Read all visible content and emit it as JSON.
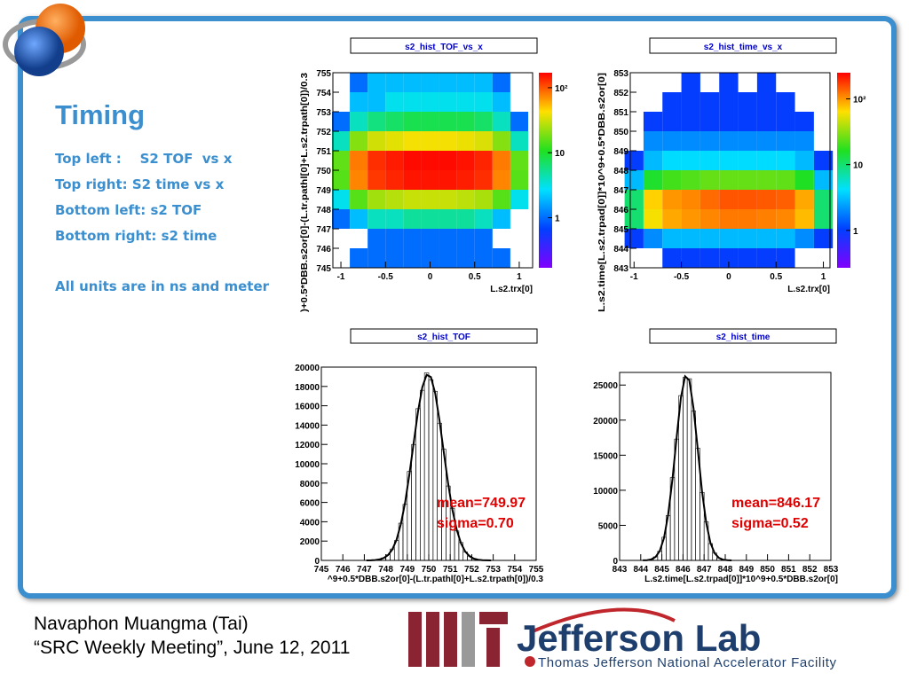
{
  "slide": {
    "title": "Timing",
    "bullets": [
      "Top left :    S2 TOF  vs x",
      "Top right: S2 time vs x",
      "Bottom left: s2 TOF",
      "Bottom right: s2 time",
      "All units are in ns and meter"
    ],
    "footer": [
      "Navaphon Muangma (Tai)",
      "“SRC Weekly Meeting”, June 12, 2011"
    ],
    "logo": {
      "name": "Jefferson Lab",
      "subtitle": "Thomas Jefferson National Accelerator Facility"
    }
  },
  "chart_data": [
    {
      "type": "heatmap",
      "title": "s2_hist_TOF_vs_x",
      "x_label": "L.s2.trx[0]",
      "y_label": ")+0.5*DBB.s2or[0]-(L.tr.pathl[0]+L.s2.trpath[0])/0.3",
      "xlim": [
        -1.09,
        1.15
      ],
      "ylim": [
        745,
        755
      ],
      "xticks": [
        -1,
        -0.5,
        0,
        0.5,
        1
      ],
      "yticks": [
        745,
        746,
        747,
        748,
        749,
        750,
        751,
        752,
        753,
        754,
        755
      ],
      "zlim": [
        0.17,
        170
      ],
      "zticks": [
        1,
        10,
        {
          "value": 100,
          "label": "10²"
        }
      ],
      "log_z": true,
      "xbins": [
        -1.1,
        -0.9,
        -0.7,
        -0.5,
        -0.3,
        -0.1,
        0.1,
        0.3,
        0.5,
        0.7,
        0.9,
        1.1
      ],
      "ybins": [
        745,
        746,
        747,
        748,
        749,
        750,
        751,
        752,
        753,
        754,
        755
      ],
      "z": [
        [
          0,
          1,
          1,
          1,
          1,
          1,
          1,
          1,
          1,
          1,
          0
        ],
        [
          0,
          0,
          1,
          1,
          1,
          1,
          1,
          1,
          1,
          0,
          0
        ],
        [
          1,
          2,
          4,
          4,
          5,
          5,
          5,
          5,
          4,
          2,
          0
        ],
        [
          3,
          15,
          24,
          27,
          30,
          30,
          30,
          28,
          25,
          15,
          3
        ],
        [
          15,
          75,
          120,
          135,
          150,
          150,
          150,
          142,
          128,
          75,
          15
        ],
        [
          16,
          80,
          128,
          144,
          160,
          160,
          160,
          152,
          136,
          80,
          16
        ],
        [
          4,
          20,
          32,
          36,
          40,
          40,
          40,
          38,
          34,
          20,
          4
        ],
        [
          1,
          4,
          6,
          7,
          8,
          8,
          8,
          8,
          7,
          4,
          1
        ],
        [
          0,
          2,
          2,
          3,
          3,
          3,
          3,
          3,
          3,
          2,
          0
        ],
        [
          0,
          1,
          2,
          2,
          2,
          2,
          2,
          2,
          2,
          1,
          0
        ]
      ]
    },
    {
      "type": "heatmap",
      "title": "s2_hist_time_vs_x",
      "x_label": "L.s2.trx[0]",
      "y_label": "L.s2.time[L.s2.trpad[0]]*10^9+0.5*DBB.s2or[0]",
      "xlim": [
        -1.04,
        1.07
      ],
      "ylim": [
        843,
        853
      ],
      "xticks": [
        -1,
        -0.5,
        0,
        0.5,
        1
      ],
      "yticks": [
        843,
        844,
        845,
        846,
        847,
        848,
        849,
        850,
        851,
        852,
        853
      ],
      "zlim": [
        0.27,
        250
      ],
      "zticks": [
        1,
        10,
        {
          "value": 100,
          "label": "10²"
        }
      ],
      "log_z": true,
      "xbins": [
        -1.1,
        -0.9,
        -0.7,
        -0.5,
        -0.3,
        -0.1,
        0.1,
        0.3,
        0.5,
        0.7,
        0.9,
        1.1
      ],
      "ybins": [
        843,
        844,
        845,
        846,
        847,
        848,
        849,
        850,
        851,
        852,
        853
      ],
      "z": [
        [
          0,
          0,
          1,
          1,
          1,
          1,
          1,
          1,
          1,
          0,
          0
        ],
        [
          1,
          2,
          3,
          3,
          3,
          3,
          3,
          3,
          3,
          2,
          1
        ],
        [
          10,
          60,
          90,
          100,
          110,
          120,
          120,
          115,
          110,
          80,
          10
        ],
        [
          10,
          70,
          100,
          110,
          130,
          150,
          150,
          145,
          140,
          90,
          10
        ],
        [
          3,
          15,
          20,
          22,
          25,
          25,
          25,
          25,
          24,
          16,
          3
        ],
        [
          1,
          3,
          4,
          4,
          4,
          4,
          4,
          4,
          4,
          3,
          1
        ],
        [
          0,
          2,
          2,
          2,
          2,
          2,
          2,
          2,
          2,
          2,
          0
        ],
        [
          0,
          1,
          1,
          1,
          1,
          1,
          1,
          1,
          1,
          1,
          0
        ],
        [
          0,
          0,
          1,
          1,
          1,
          1,
          1,
          1,
          1,
          0,
          0
        ],
        [
          0,
          0,
          0,
          1,
          0,
          1,
          0,
          1,
          0,
          0,
          0
        ]
      ]
    },
    {
      "type": "histogram",
      "title": "s2_hist_TOF",
      "x_label": "^9+0.5*DBB.s2or[0]-(L.tr.pathl[0]+L.s2.trpath[0])/0.3",
      "xlim": [
        745,
        755
      ],
      "ylim": [
        0,
        20000
      ],
      "xticks": [
        745,
        746,
        747,
        748,
        749,
        750,
        751,
        752,
        753,
        754,
        755
      ],
      "yticks": [
        0,
        2000,
        4000,
        6000,
        8000,
        10000,
        12000,
        14000,
        16000,
        18000,
        20000
      ],
      "bins": [
        747,
        747.2,
        747.4,
        747.6,
        747.8,
        748,
        748.2,
        748.4,
        748.6,
        748.8,
        749,
        749.2,
        749.4,
        749.6,
        749.8,
        750,
        750.2,
        750.4,
        750.6,
        750.8,
        751,
        751.2,
        751.4,
        751.6,
        751.8,
        752,
        752.2,
        752.4,
        752.6,
        752.8,
        753
      ],
      "counts": [
        6,
        15,
        42,
        110,
        260,
        580,
        1180,
        2050,
        3850,
        5800,
        9200,
        12000,
        15700,
        17600,
        19400,
        18700,
        17500,
        14200,
        11500,
        7700,
        5400,
        3050,
        1850,
        880,
        450,
        170,
        80,
        30,
        12,
        4
      ],
      "fit": {
        "x": [
          747.1,
          747.3,
          747.5,
          747.7,
          747.9,
          748.1,
          748.3,
          748.5,
          748.7,
          748.9,
          749.1,
          749.3,
          749.5,
          749.7,
          749.9,
          750.1,
          750.3,
          750.5,
          750.7,
          750.9,
          751.1,
          751.3,
          751.5,
          751.7,
          751.9,
          752.1,
          752.3,
          752.5,
          752.7,
          752.9
        ],
        "values": [
          4,
          13,
          38,
          101,
          244,
          545,
          1121,
          2127,
          3721,
          6002,
          8917,
          12207,
          15403,
          17910,
          19204,
          18971,
          17274,
          14490,
          11204,
          7984,
          5244,
          3175,
          1770,
          911,
          431,
          188,
          76,
          28,
          10,
          3
        ]
      },
      "annotations": [
        "mean=749.97",
        "sigma=0.70"
      ]
    },
    {
      "type": "histogram",
      "title": "s2_hist_time",
      "x_label": "L.s2.time[L.s2.trpad[0]]*10^9+0.5*DBB.s2or[0]",
      "xlim": [
        843,
        853
      ],
      "ylim": [
        0,
        26800
      ],
      "xticks": [
        843,
        844,
        845,
        846,
        847,
        848,
        849,
        850,
        851,
        852,
        853
      ],
      "yticks": [
        0,
        5000,
        10000,
        15000,
        20000,
        25000
      ],
      "bins": [
        844,
        844.2,
        844.4,
        844.6,
        844.8,
        845,
        845.2,
        845.4,
        845.6,
        845.8,
        846,
        846.2,
        846.4,
        846.6,
        846.8,
        847,
        847.2,
        847.4,
        847.6,
        847.8,
        848,
        848.2,
        848.4
      ],
      "counts": [
        12,
        45,
        160,
        510,
        1300,
        3300,
        6400,
        11800,
        17300,
        23500,
        26100,
        25900,
        21300,
        16000,
        9700,
        5500,
        2400,
        1050,
        330,
        110,
        25,
        7
      ],
      "fit": {
        "x": [
          844.1,
          844.3,
          844.5,
          844.7,
          844.9,
          845.1,
          845.3,
          845.5,
          845.7,
          845.9,
          846.1,
          846.3,
          846.5,
          846.7,
          846.9,
          847.1,
          847.3,
          847.5,
          847.7,
          847.9,
          848.1,
          848.3
        ],
        "values": [
          10,
          41,
          153,
          487,
          1341,
          3191,
          6535,
          11554,
          17615,
          23158,
          26262,
          25684,
          21666,
          15765,
          9893,
          5353,
          2499,
          1007,
          349,
          105,
          27,
          6
        ]
      },
      "annotations": [
        "mean=846.17",
        "sigma=0.52"
      ]
    }
  ]
}
